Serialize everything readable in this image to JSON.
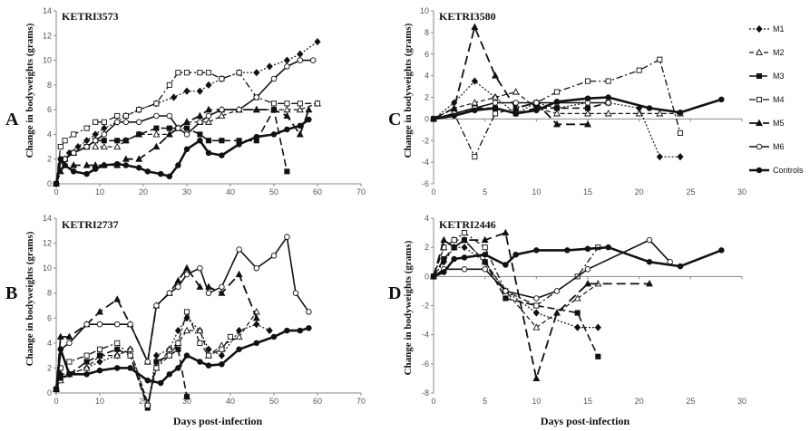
{
  "legend": [
    "M1",
    "M2",
    "M3",
    "M4",
    "M5",
    "M6",
    "Controls"
  ],
  "chart_data": [
    {
      "type": "line",
      "panel_letter": "A",
      "title": "KETRI3573",
      "ylabel": "Change in bodyweights (grams)",
      "xlabel": "",
      "xlim": [
        0,
        70
      ],
      "ylim": [
        0,
        14
      ],
      "xticks": [
        0,
        10,
        20,
        30,
        40,
        50,
        60,
        70
      ],
      "yticks": [
        0,
        2,
        4,
        6,
        8,
        10,
        12,
        14
      ],
      "series": [
        {
          "name": "M1",
          "x": [
            0,
            1,
            2,
            3,
            5,
            7,
            9,
            11,
            14,
            16,
            19,
            23,
            27,
            30,
            33,
            35,
            38,
            42,
            46,
            49,
            53,
            56,
            60
          ],
          "y": [
            0,
            1.5,
            2,
            2.5,
            3,
            3.5,
            4,
            4.5,
            5,
            5.5,
            6,
            6.5,
            7,
            7.5,
            7.5,
            8,
            8.5,
            9,
            9,
            9.5,
            10,
            10.5,
            11.5
          ]
        },
        {
          "name": "M2",
          "x": [
            0,
            1,
            2,
            4,
            7,
            9,
            11,
            14,
            16,
            19,
            23,
            26,
            28,
            30,
            33,
            35,
            38,
            42,
            46,
            50,
            53,
            56,
            60
          ],
          "y": [
            0,
            1.5,
            2,
            2.5,
            3,
            3,
            3,
            3,
            3.5,
            4,
            4,
            4,
            4.5,
            5,
            5,
            5,
            5.5,
            6,
            6,
            6,
            6,
            6,
            6.5
          ]
        },
        {
          "name": "M3",
          "x": [
            0,
            1,
            2,
            4,
            7,
            9,
            11,
            14,
            16,
            19,
            23,
            26,
            28,
            30,
            33,
            35,
            38,
            42,
            46,
            50,
            53
          ],
          "y": [
            0,
            1.5,
            2,
            2.5,
            3,
            3.5,
            3.5,
            3.5,
            3.5,
            4,
            4.5,
            4.5,
            4.5,
            4.5,
            4,
            3.5,
            3.5,
            3.5,
            3.5,
            6,
            1
          ]
        },
        {
          "name": "M4",
          "x": [
            0,
            1,
            2,
            4,
            7,
            9,
            11,
            14,
            16,
            19,
            23,
            26,
            28,
            30,
            33,
            35,
            38,
            42,
            46,
            50,
            53,
            56,
            60
          ],
          "y": [
            0,
            3,
            3.5,
            4,
            4.5,
            5,
            5,
            5.5,
            5.5,
            6,
            6.5,
            8,
            9,
            9,
            9,
            9,
            8.5,
            9,
            7,
            6.5,
            6.5,
            6.5,
            6.5
          ]
        },
        {
          "name": "M5",
          "x": [
            0,
            1,
            2,
            4,
            7,
            9,
            11,
            14,
            16,
            19,
            23,
            26,
            28,
            30,
            33,
            35,
            38,
            42,
            46,
            50,
            53,
            56,
            58
          ],
          "y": [
            0,
            1,
            1.5,
            1.5,
            1.5,
            1.5,
            1.5,
            1.5,
            2,
            2,
            3,
            4,
            4.5,
            5,
            5.5,
            6,
            6,
            6,
            6,
            6,
            5.5,
            4,
            6
          ]
        },
        {
          "name": "M6",
          "x": [
            0,
            1,
            2,
            4,
            7,
            9,
            11,
            14,
            16,
            19,
            23,
            26,
            28,
            30,
            33,
            35,
            38,
            42,
            46,
            50,
            53,
            56,
            59
          ],
          "y": [
            0,
            1.5,
            2,
            2.5,
            3,
            3.5,
            4,
            5,
            5,
            5,
            5.5,
            5.5,
            4.5,
            4,
            5,
            5.5,
            6,
            6,
            7,
            8.5,
            9.5,
            10,
            10
          ]
        },
        {
          "name": "Controls",
          "x": [
            0,
            1,
            2,
            4,
            7,
            9,
            11,
            14,
            16,
            19,
            21,
            24,
            26,
            28,
            30,
            33,
            35,
            38,
            42,
            46,
            50,
            53,
            56,
            58
          ],
          "y": [
            0,
            2,
            1.5,
            1,
            0.8,
            1.2,
            1.5,
            1.6,
            1.5,
            1.3,
            1,
            0.8,
            0.6,
            1.5,
            2.8,
            3.5,
            2.5,
            2.3,
            3.2,
            3.8,
            4,
            4.4,
            4.7,
            5.2
          ]
        }
      ]
    },
    {
      "type": "line",
      "panel_letter": "B",
      "title": "KETRI2737",
      "ylabel": "Change in bodyweights (grams)",
      "xlabel": "Days post-infection",
      "xlim": [
        0,
        70
      ],
      "ylim": [
        0,
        14
      ],
      "xticks": [
        0,
        10,
        20,
        30,
        40,
        50,
        60,
        70
      ],
      "yticks": [
        0,
        2,
        4,
        6,
        8,
        10,
        12,
        14
      ],
      "series": [
        {
          "name": "M1",
          "x": [
            0,
            1,
            3,
            7,
            10,
            14,
            17,
            21,
            23,
            26,
            28,
            30,
            33,
            35,
            38,
            42,
            46,
            49
          ],
          "y": [
            0.3,
            1.5,
            1.5,
            2,
            2.5,
            3,
            3.5,
            -1,
            3,
            3.5,
            5,
            6,
            5,
            3.5,
            3,
            5,
            5.5,
            5
          ]
        },
        {
          "name": "M2",
          "x": [
            0,
            1,
            3,
            7,
            10,
            14,
            17,
            21,
            23,
            26,
            28,
            30,
            33,
            35,
            38,
            42,
            46
          ],
          "y": [
            0.3,
            1,
            1.5,
            2,
            3,
            3,
            3.5,
            -0.8,
            2,
            3.5,
            4,
            5,
            5,
            3,
            3.8,
            4.5,
            6.5
          ]
        },
        {
          "name": "M3",
          "x": [
            0,
            1,
            3,
            7,
            10,
            14,
            17,
            21,
            23,
            26,
            28,
            30
          ],
          "y": [
            0.3,
            1.2,
            1.5,
            2.5,
            3,
            3.5,
            3,
            -1.2,
            2.5,
            3,
            3.5,
            -0.3
          ]
        },
        {
          "name": "M4",
          "x": [
            0,
            1,
            3,
            7,
            10,
            14,
            17,
            21,
            23,
            26,
            28,
            30,
            33,
            35,
            38,
            40
          ],
          "y": [
            0.3,
            2,
            2.5,
            3,
            3.5,
            4,
            3,
            -1,
            2,
            3,
            4,
            6.5,
            4,
            3,
            3.5,
            4.5
          ]
        },
        {
          "name": "M5",
          "x": [
            0,
            1,
            3,
            7,
            10,
            14,
            17,
            21,
            23,
            26,
            28,
            30,
            33,
            35,
            38,
            42,
            46
          ],
          "y": [
            0.3,
            4.5,
            4.5,
            5.5,
            6.5,
            7.5,
            5.5,
            2.5,
            7,
            8,
            9,
            10,
            8.5,
            8.5,
            8,
            9.5,
            6
          ]
        },
        {
          "name": "M6",
          "x": [
            0,
            1,
            3,
            7,
            10,
            14,
            17,
            21,
            23,
            26,
            28,
            30,
            33,
            35,
            38,
            42,
            46,
            50,
            53,
            55,
            58
          ],
          "y": [
            0.3,
            3.5,
            4,
            5.5,
            5.5,
            5.5,
            5.5,
            2.5,
            7,
            8,
            8.5,
            9.5,
            10,
            8,
            8.5,
            11.5,
            10,
            11,
            12.5,
            8,
            6.5
          ]
        },
        {
          "name": "Controls",
          "x": [
            0,
            1,
            3,
            7,
            10,
            14,
            17,
            21,
            24,
            26,
            28,
            30,
            33,
            35,
            38,
            42,
            46,
            50,
            53,
            56,
            58
          ],
          "y": [
            0.3,
            3.5,
            1.5,
            1.5,
            1.8,
            2,
            2,
            1,
            0.8,
            1.5,
            2,
            3,
            2.5,
            2.2,
            2.3,
            3.5,
            4,
            4.5,
            5,
            5,
            5.2
          ]
        }
      ]
    },
    {
      "type": "line",
      "panel_letter": "C",
      "title": "KETRI3580",
      "ylabel": "Change in bodyweights (grams)",
      "xlabel": "",
      "xlim": [
        0,
        30
      ],
      "ylim": [
        -6,
        10
      ],
      "xticks": [
        0,
        5,
        10,
        15,
        20,
        25,
        30
      ],
      "yticks": [
        -6,
        -4,
        -2,
        0,
        2,
        4,
        6,
        8,
        10
      ],
      "series": [
        {
          "name": "M1",
          "x": [
            0,
            2,
            4,
            6,
            8,
            10,
            12,
            15,
            17,
            20,
            22,
            24
          ],
          "y": [
            0,
            1.5,
            3.5,
            2,
            0.5,
            1.5,
            1,
            1.5,
            1.5,
            1,
            -3.5,
            -3.5
          ]
        },
        {
          "name": "M2",
          "x": [
            0,
            2,
            4,
            6,
            8,
            10,
            12,
            15,
            17,
            20,
            22,
            24
          ],
          "y": [
            0,
            1,
            1.5,
            2,
            2.5,
            1,
            0.5,
            0.5,
            0.5,
            0.5,
            0.5,
            0.5
          ]
        },
        {
          "name": "M3",
          "x": [
            0,
            2,
            4,
            6,
            8,
            10,
            12,
            15,
            17
          ],
          "y": [
            0,
            0.5,
            1,
            1,
            0.5,
            1,
            1,
            1,
            1.5
          ]
        },
        {
          "name": "M4",
          "x": [
            0,
            2,
            4,
            6,
            8,
            10,
            12,
            15,
            17,
            20,
            22,
            24
          ],
          "y": [
            0,
            0.5,
            -3.5,
            0.5,
            1,
            1.5,
            2.5,
            3.5,
            3.5,
            4.5,
            5.5,
            -1.3
          ]
        },
        {
          "name": "M5",
          "x": [
            0,
            2,
            4,
            6,
            8,
            10,
            12,
            15
          ],
          "y": [
            0,
            1,
            8.5,
            4,
            1,
            1.5,
            -0.5,
            -0.5
          ]
        },
        {
          "name": "M6",
          "x": [
            0,
            2,
            4,
            6,
            8,
            10,
            12,
            15,
            17
          ],
          "y": [
            0,
            0.5,
            1,
            1.5,
            1.5,
            1.5,
            1.5,
            1.5,
            1.5
          ]
        },
        {
          "name": "Controls",
          "x": [
            0,
            2,
            4,
            6,
            8,
            10,
            12,
            15,
            17,
            21,
            24,
            28
          ],
          "y": [
            0,
            0.3,
            0.8,
            1,
            0.5,
            0.8,
            1.6,
            1.9,
            2,
            1,
            0.6,
            1.8
          ]
        }
      ]
    },
    {
      "type": "line",
      "panel_letter": "D",
      "title": "KETRI2446",
      "ylabel": "Change in bodyweights (grams)",
      "xlabel": "Days post-infection",
      "xlim": [
        0,
        30
      ],
      "ylim": [
        -8,
        4
      ],
      "xticks": [
        0,
        5,
        10,
        15,
        20,
        25,
        30
      ],
      "yticks": [
        -8,
        -6,
        -4,
        -2,
        0,
        2,
        4
      ],
      "series": [
        {
          "name": "M1",
          "x": [
            0,
            1,
            2,
            3,
            5,
            7,
            10,
            14,
            16
          ],
          "y": [
            0,
            1,
            2,
            2,
            1,
            -1,
            -2.5,
            -3.5,
            -3.5
          ]
        },
        {
          "name": "M2",
          "x": [
            0,
            1,
            2,
            3,
            5,
            7,
            10,
            14,
            16
          ],
          "y": [
            0,
            2,
            2.5,
            2.5,
            1,
            -1,
            -3.5,
            -1.5,
            -0.5
          ]
        },
        {
          "name": "M3",
          "x": [
            0,
            1,
            2,
            3,
            5,
            7,
            10,
            14,
            16
          ],
          "y": [
            0,
            1.2,
            2,
            2.5,
            1,
            -1.5,
            -2,
            -2.5,
            -5.5
          ]
        },
        {
          "name": "M4",
          "x": [
            0,
            1,
            2,
            3,
            5,
            7,
            10,
            14,
            16
          ],
          "y": [
            0,
            2,
            2.5,
            3,
            2,
            -1,
            -2,
            0,
            2
          ]
        },
        {
          "name": "M5",
          "x": [
            0,
            1,
            2,
            3,
            5,
            7,
            10,
            12,
            15,
            21
          ],
          "y": [
            0,
            2.5,
            2,
            2.5,
            2.5,
            3,
            -7,
            -2.5,
            -0.5,
            -0.5
          ]
        },
        {
          "name": "M6",
          "x": [
            0,
            1,
            3,
            5,
            7,
            10,
            12,
            15,
            21,
            23
          ],
          "y": [
            0,
            0.5,
            0.5,
            0.5,
            -1,
            -1.5,
            -1,
            0.5,
            2.5,
            1
          ]
        },
        {
          "name": "Controls",
          "x": [
            0,
            1,
            2,
            3,
            5,
            7,
            8,
            10,
            13,
            15,
            17,
            21,
            24,
            28
          ],
          "y": [
            0,
            0.3,
            1.2,
            1.3,
            1.5,
            0.8,
            1.5,
            1.8,
            1.8,
            1.9,
            2,
            1,
            0.7,
            1.8
          ]
        }
      ]
    }
  ]
}
